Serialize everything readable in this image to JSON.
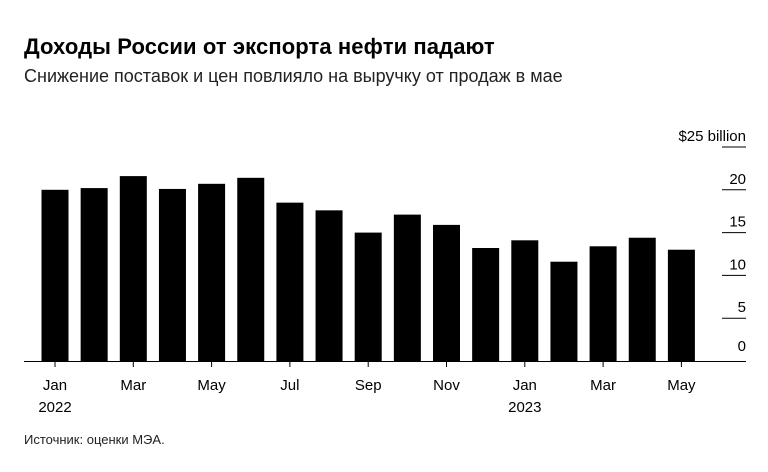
{
  "title": "Доходы России от экспорта нефти падают",
  "subtitle": "Снижение поставок и цен повлияло на выручку от продаж в мае",
  "source": "Источник: оценки МЭА.",
  "chart_data": {
    "type": "bar",
    "categories": [
      "Jan 2022",
      "Feb 2022",
      "Mar 2022",
      "Apr 2022",
      "May 2022",
      "Jun 2022",
      "Jul 2022",
      "Aug 2022",
      "Sep 2022",
      "Oct 2022",
      "Nov 2022",
      "Dec 2022",
      "Jan 2023",
      "Feb 2023",
      "Mar 2023",
      "Apr 2023",
      "May 2023"
    ],
    "values": [
      20.0,
      20.2,
      21.6,
      20.1,
      20.7,
      21.4,
      18.5,
      17.6,
      15.0,
      17.1,
      15.9,
      13.2,
      14.1,
      11.6,
      13.4,
      14.4,
      13.0
    ],
    "series_color": "#000000",
    "ylim": [
      0,
      25
    ],
    "y_ticks": [
      {
        "value": 25,
        "label": "$25 billion"
      },
      {
        "value": 20,
        "label": "20"
      },
      {
        "value": 15,
        "label": "15"
      },
      {
        "value": 10,
        "label": "10"
      },
      {
        "value": 5,
        "label": "5"
      },
      {
        "value": 0,
        "label": "0"
      }
    ],
    "x_ticks": [
      {
        "index": 0,
        "label": "Jan",
        "year": "2022"
      },
      {
        "index": 2,
        "label": "Mar"
      },
      {
        "index": 4,
        "label": "May"
      },
      {
        "index": 6,
        "label": "Jul"
      },
      {
        "index": 8,
        "label": "Sep"
      },
      {
        "index": 10,
        "label": "Nov"
      },
      {
        "index": 12,
        "label": "Jan",
        "year": "2023"
      },
      {
        "index": 14,
        "label": "Mar"
      },
      {
        "index": 16,
        "label": "May"
      }
    ],
    "grid": false
  }
}
